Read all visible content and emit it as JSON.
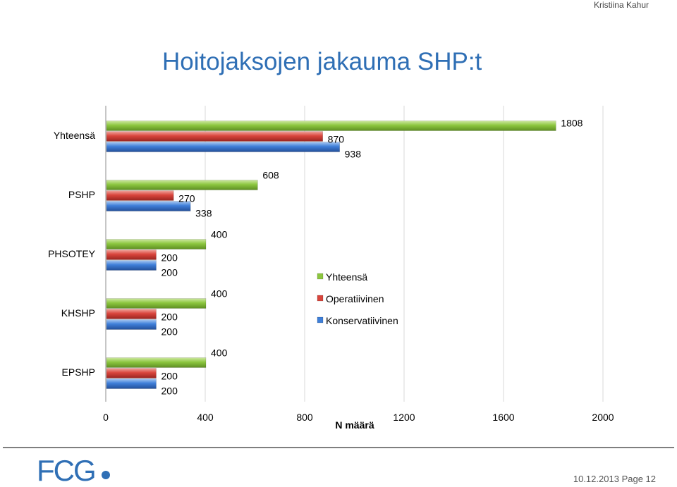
{
  "header": {
    "author": "Kristiina Kahur"
  },
  "title": "Hoitojaksojen jakauma  SHP:t",
  "chart_data": {
    "type": "bar",
    "orientation": "horizontal",
    "title": "",
    "xlabel": "N määrä",
    "ylabel": "",
    "xlim": [
      0,
      2000
    ],
    "xticks": [
      0,
      400,
      800,
      1200,
      1600,
      2000
    ],
    "categories": [
      "Yhteensä",
      "PSHP",
      "PHSOTEY",
      "KHSHP",
      "EPSHP"
    ],
    "series": [
      {
        "name": "Yhteensä",
        "color": "#8cc63f",
        "values": [
          1808,
          608,
          400,
          400,
          400
        ]
      },
      {
        "name": "Operatiivinen",
        "color": "#d9453c",
        "values": [
          870,
          270,
          200,
          200,
          200
        ]
      },
      {
        "name": "Konservatiivinen",
        "color": "#3f7fd9",
        "values": [
          938,
          338,
          200,
          200,
          200
        ]
      }
    ],
    "legend": "inside, center-right",
    "grid": "vertical"
  },
  "footer": {
    "logo": "FCG",
    "date": "10.12.2013",
    "page": "Page 12"
  }
}
